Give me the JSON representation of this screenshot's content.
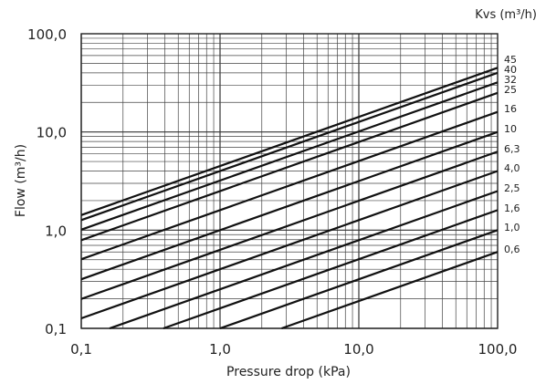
{
  "chart_data": {
    "type": "line",
    "xlabel": "Pressure drop (kPa)",
    "ylabel": "Flow (m³/h)",
    "x_scale": "log",
    "y_scale": "log",
    "xlim": [
      0.1,
      100
    ],
    "ylim": [
      0.1,
      100
    ],
    "grid": true,
    "x_ticks": [
      "0,1",
      "1,0",
      "10,0",
      "100,0"
    ],
    "y_ticks": [
      "0,1",
      "1,0",
      "10,0",
      "100,0"
    ],
    "x_tick_values": [
      0.1,
      1,
      10,
      100
    ],
    "y_tick_values": [
      0.1,
      1,
      10,
      100
    ],
    "series_header": "Kvs (m³/h)",
    "series": [
      {
        "name": "45",
        "kvs": 45
      },
      {
        "name": "40",
        "kvs": 40
      },
      {
        "name": "32",
        "kvs": 32
      },
      {
        "name": "25",
        "kvs": 25
      },
      {
        "name": "16",
        "kvs": 16
      },
      {
        "name": "10",
        "kvs": 10
      },
      {
        "name": "6,3",
        "kvs": 6.3
      },
      {
        "name": "4,0",
        "kvs": 4.0
      },
      {
        "name": "2,5",
        "kvs": 2.5
      },
      {
        "name": "1,6",
        "kvs": 1.6
      },
      {
        "name": "1,0",
        "kvs": 1.0
      },
      {
        "name": "0,6",
        "kvs": 0.6
      }
    ]
  }
}
